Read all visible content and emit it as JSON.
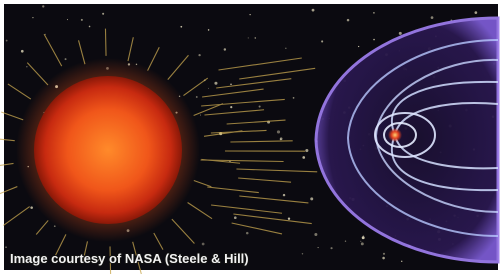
{
  "caption": "Image courtesy of NASA (Steele & Hill)"
}
